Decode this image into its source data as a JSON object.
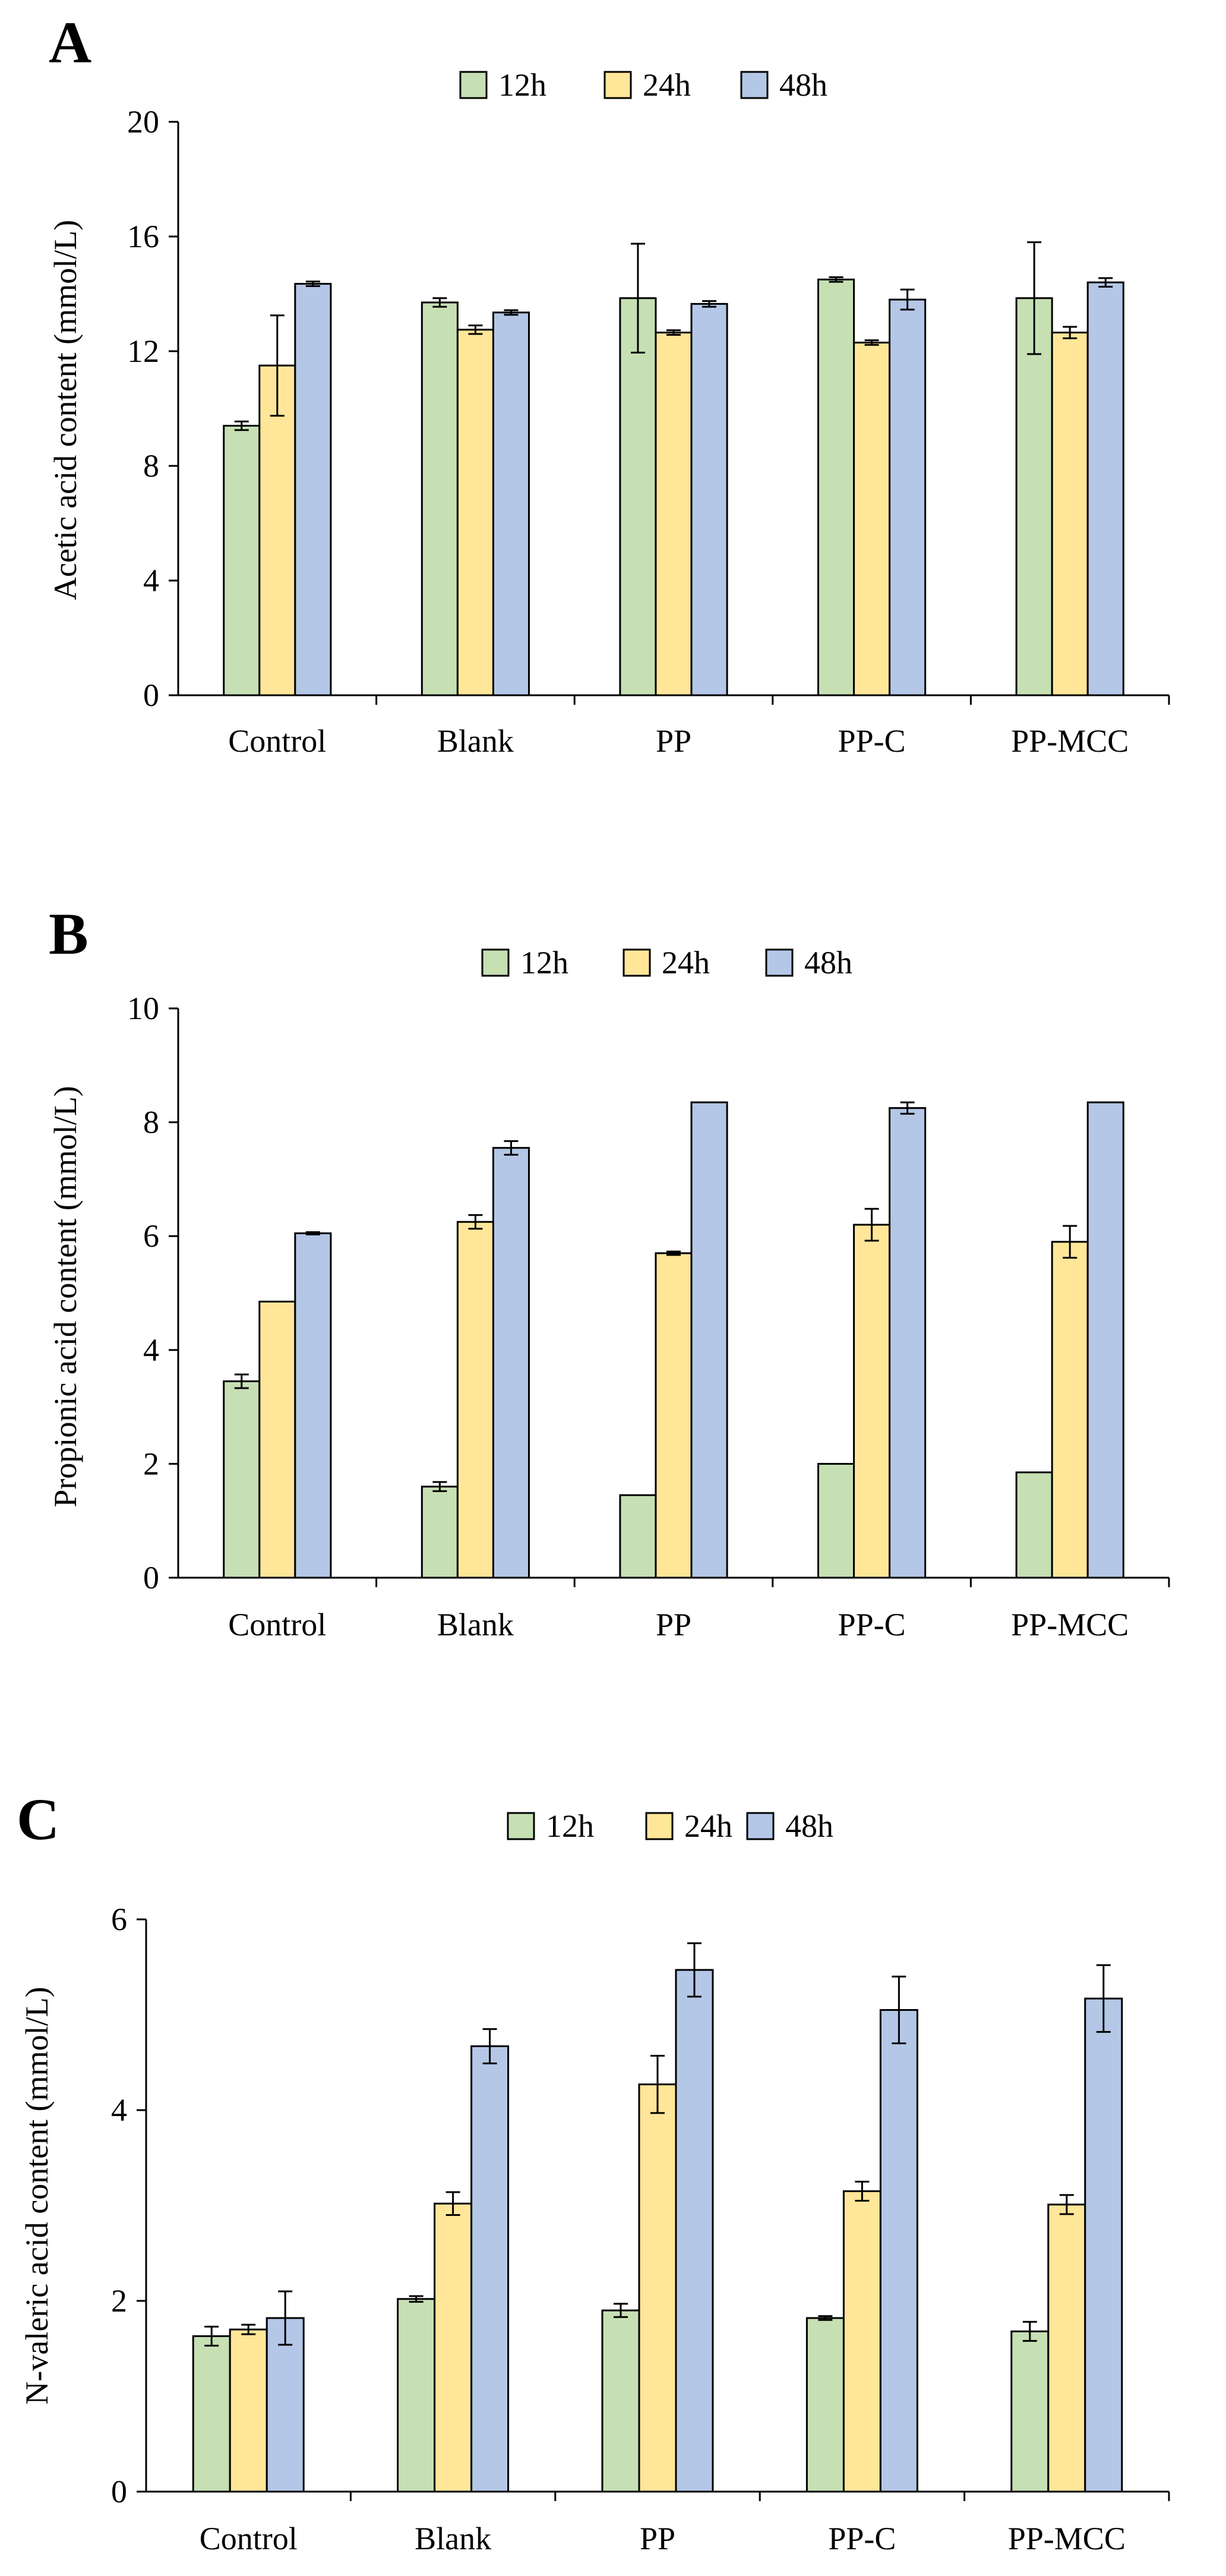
{
  "colors": {
    "12h": "#c6e0b4",
    "24h": "#ffe699",
    "48h": "#b4c7e7",
    "stroke": "#000000"
  },
  "chart_data": [
    {
      "type": "bar",
      "panel": "A",
      "categories": [
        "Control",
        "Blank",
        "PP",
        "PP-C",
        "PP-MCC"
      ],
      "ylabel": "Acetic acid content (mmol/L)",
      "ylim": [
        0,
        20
      ],
      "yticks": [
        "0",
        "4",
        "8",
        "12",
        "16",
        "20"
      ],
      "legend_position": "top-center",
      "series": [
        {
          "name": "12h",
          "values": [
            9.4,
            13.7,
            13.85,
            14.5,
            13.85
          ],
          "errors": [
            0.15,
            0.15,
            1.9,
            0.08,
            1.95
          ]
        },
        {
          "name": "24h",
          "values": [
            11.5,
            12.75,
            12.65,
            12.3,
            12.65
          ],
          "errors": [
            1.75,
            0.15,
            0.08,
            0.08,
            0.2
          ]
        },
        {
          "name": "48h",
          "values": [
            14.35,
            13.35,
            13.65,
            13.8,
            14.4
          ],
          "errors": [
            0.08,
            0.08,
            0.1,
            0.35,
            0.15
          ]
        }
      ]
    },
    {
      "type": "bar",
      "panel": "B",
      "categories": [
        "Control",
        "Blank",
        "PP",
        "PP-C",
        "PP-MCC"
      ],
      "ylabel": "Propionic acid content (mmol/L)",
      "ylim": [
        0,
        10
      ],
      "yticks": [
        "0",
        "2",
        "4",
        "6",
        "8",
        "10"
      ],
      "legend_position": "top-center",
      "series": [
        {
          "name": "12h",
          "values": [
            3.45,
            1.6,
            1.45,
            2.0,
            1.85
          ],
          "errors": [
            0.12,
            0.08,
            0,
            0,
            0
          ]
        },
        {
          "name": "24h",
          "values": [
            4.85,
            6.25,
            5.7,
            6.2,
            5.9
          ],
          "errors": [
            0,
            0.12,
            0.03,
            0.28,
            0.28
          ]
        },
        {
          "name": "48h",
          "values": [
            6.05,
            7.55,
            8.35,
            8.25,
            8.35
          ],
          "errors": [
            0.02,
            0.12,
            0,
            0.1,
            0
          ]
        }
      ]
    },
    {
      "type": "bar",
      "panel": "C",
      "categories": [
        "Control",
        "Blank",
        "PP",
        "PP-C",
        "PP-MCC"
      ],
      "ylabel": "N-valeric acid content (mmol/L)",
      "ylim": [
        0,
        6
      ],
      "yticks": [
        "0",
        "2",
        "4",
        "6"
      ],
      "legend_position": "top-center",
      "series": [
        {
          "name": "12h",
          "values": [
            1.63,
            2.02,
            1.9,
            1.82,
            1.68
          ],
          "errors": [
            0.1,
            0.03,
            0.07,
            0.02,
            0.1
          ]
        },
        {
          "name": "24h",
          "values": [
            1.7,
            3.02,
            4.27,
            3.15,
            3.01
          ],
          "errors": [
            0.05,
            0.12,
            0.3,
            0.1,
            0.1
          ]
        },
        {
          "name": "48h",
          "values": [
            1.82,
            4.67,
            5.47,
            5.05,
            5.17
          ],
          "errors": [
            0.28,
            0.18,
            0.28,
            0.35,
            0.35
          ]
        }
      ]
    }
  ]
}
